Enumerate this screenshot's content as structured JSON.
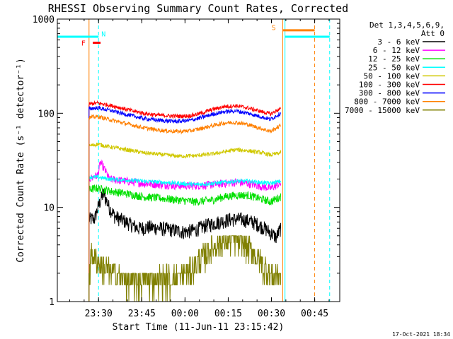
{
  "chart_data": {
    "type": "line",
    "title": "RHESSI Observing Summary Count Rates, Corrected",
    "xlabel": "Start Time (11-Jun-11 23:15:42)",
    "ylabel": "Corrected Count Rate (s⁻¹ detector⁻¹)",
    "x_unit": "minutes since 23:15:42",
    "xlim": [
      0,
      98
    ],
    "ylim": [
      1,
      1000
    ],
    "yscale": "log",
    "x_ticks": [
      {
        "value": 14.3,
        "label": "23:30"
      },
      {
        "value": 29.3,
        "label": "23:45"
      },
      {
        "value": 44.3,
        "label": "00:00"
      },
      {
        "value": 59.3,
        "label": "00:15"
      },
      {
        "value": 74.3,
        "label": "00:30"
      },
      {
        "value": 89.3,
        "label": "00:45"
      }
    ],
    "y_ticks": [
      {
        "value": 1,
        "label": "1"
      },
      {
        "value": 10,
        "label": "10"
      },
      {
        "value": 100,
        "label": "100"
      },
      {
        "value": 1000,
        "label": "1000"
      }
    ],
    "legend_header": [
      "Det 1,3,4,5,6,9,",
      "Att 0"
    ],
    "legend_position": "top-right",
    "series": [
      {
        "name": "3 - 6 keV",
        "color": "#000000",
        "x": [
          11,
          13,
          16,
          18,
          20,
          24,
          28,
          32,
          36,
          40,
          44,
          48,
          52,
          56,
          60,
          64,
          68,
          72,
          76,
          77.5
        ],
        "y": [
          7.5,
          7.6,
          14,
          10,
          8,
          7,
          6,
          6.2,
          6,
          5.8,
          5.5,
          5.8,
          6.5,
          7,
          7.5,
          7.5,
          7,
          6,
          4.8,
          6
        ]
      },
      {
        "name": "6 - 12 keV",
        "color": "#ff00ff",
        "x": [
          11,
          14,
          15,
          18,
          24,
          30,
          36,
          42,
          48,
          54,
          58,
          62,
          66,
          70,
          74,
          77.5
        ],
        "y": [
          20,
          22,
          30,
          20,
          19,
          18,
          17.5,
          17,
          17,
          17.5,
          18,
          18.5,
          18,
          17,
          16,
          18
        ]
      },
      {
        "name": "12 - 25 keV",
        "color": "#00e000",
        "x": [
          11,
          14,
          18,
          24,
          30,
          36,
          42,
          48,
          54,
          58,
          62,
          66,
          70,
          74,
          77.5
        ],
        "y": [
          15.5,
          16,
          15,
          14,
          13,
          12.5,
          12,
          11.5,
          12,
          13,
          13.5,
          13.5,
          12.5,
          11.5,
          13
        ]
      },
      {
        "name": "25 - 50 keV",
        "color": "#00ffff",
        "x": [
          11,
          14,
          18,
          24,
          30,
          36,
          42,
          48,
          54,
          58,
          62,
          66,
          70,
          74,
          77.5
        ],
        "y": [
          21,
          21,
          20,
          19.5,
          19,
          18.5,
          18,
          17.5,
          18,
          18.5,
          19,
          19,
          18.5,
          18,
          19
        ]
      },
      {
        "name": "50 - 100 keV",
        "color": "#d0c800",
        "x": [
          11,
          14,
          18,
          24,
          30,
          36,
          42,
          48,
          54,
          58,
          62,
          66,
          70,
          74,
          77.5
        ],
        "y": [
          45,
          47,
          44,
          41,
          38,
          36.5,
          35,
          35.5,
          37,
          39,
          41,
          40,
          38.5,
          36,
          38
        ]
      },
      {
        "name": "100 - 300 keV",
        "color": "#ff0000",
        "x": [
          11,
          14,
          18,
          22,
          26,
          30,
          34,
          38,
          42,
          46,
          50,
          54,
          58,
          62,
          66,
          70,
          74,
          77.5
        ],
        "y": [
          125,
          128,
          122,
          114,
          106,
          100,
          96,
          94,
          93,
          94,
          100,
          110,
          118,
          120,
          114,
          106,
          98,
          112
        ]
      },
      {
        "name": "300 - 800 keV",
        "color": "#0000ff",
        "x": [
          11,
          14,
          18,
          22,
          26,
          30,
          34,
          38,
          42,
          46,
          50,
          54,
          58,
          62,
          66,
          70,
          74,
          77.5
        ],
        "y": [
          112,
          114,
          108,
          100,
          94,
          88,
          85,
          83,
          82,
          84,
          90,
          98,
          104,
          106,
          100,
          93,
          86,
          100
        ]
      },
      {
        "name": "800 - 7000 keV",
        "color": "#ff8000",
        "x": [
          11,
          14,
          18,
          22,
          26,
          30,
          34,
          38,
          42,
          46,
          50,
          54,
          58,
          62,
          66,
          70,
          74,
          77.5
        ],
        "y": [
          90,
          92,
          86,
          80,
          75,
          70,
          67,
          65,
          64,
          65,
          69,
          74,
          79,
          80,
          76,
          70,
          64,
          74
        ]
      },
      {
        "name": "7000 - 15000 keV",
        "color": "#808000",
        "x": [
          11,
          12,
          14,
          18,
          24,
          30,
          36,
          42,
          46,
          50,
          54,
          58,
          62,
          66,
          70,
          74,
          77.5
        ],
        "y": [
          2,
          3,
          2.5,
          2,
          1.6,
          1.6,
          1.7,
          1.7,
          2,
          2.8,
          3.6,
          4.2,
          4.4,
          3.6,
          2.6,
          1.8,
          2
        ]
      }
    ],
    "annotations": [
      {
        "label": "N",
        "color": "#00ffff",
        "x": 14.3,
        "y": 700
      },
      {
        "label": "F",
        "color": "#ff0000",
        "x": 10.5,
        "y": 560
      },
      {
        "label": "S",
        "color": "#ff8000",
        "x": 76.3,
        "y": 820
      }
    ],
    "night_segments": [
      {
        "x1": 0,
        "x2": 14.3,
        "y": 650,
        "color": "#00ffff"
      },
      {
        "x1": 79,
        "x2": 94.5,
        "y": 650,
        "color": "#00ffff"
      }
    ],
    "flare_segment": {
      "x1": 12.3,
      "x2": 15,
      "y": 560,
      "color": "#ff0000"
    },
    "saa_segment": {
      "x1": 78.2,
      "x2": 89.3,
      "y": 760,
      "color": "#ff8000"
    },
    "vertical_markers": [
      {
        "x": 0,
        "color": "#00ffff",
        "style": "solid"
      },
      {
        "x": 14.3,
        "color": "#00ffff",
        "style": "dashed"
      },
      {
        "x": 11,
        "color": "#ff8000",
        "style": "solid"
      },
      {
        "x": 78.2,
        "color": "#ff8000",
        "style": "solid"
      },
      {
        "x": 89.3,
        "color": "#ff8000",
        "style": "dashed"
      },
      {
        "x": 79,
        "color": "#00ffff",
        "style": "solid"
      },
      {
        "x": 94.5,
        "color": "#00ffff",
        "style": "dashed"
      }
    ],
    "footer_date": "17-Oct-2021 18:34"
  }
}
